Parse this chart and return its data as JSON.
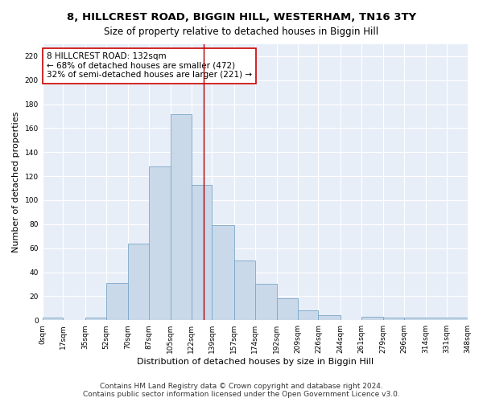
{
  "title": "8, HILLCREST ROAD, BIGGIN HILL, WESTERHAM, TN16 3TY",
  "subtitle": "Size of property relative to detached houses in Biggin Hill",
  "xlabel": "Distribution of detached houses by size in Biggin Hill",
  "ylabel": "Number of detached properties",
  "bar_values": [
    2,
    0,
    2,
    31,
    64,
    128,
    172,
    113,
    79,
    50,
    30,
    18,
    8,
    4,
    0,
    3,
    2,
    2
  ],
  "bin_edges": [
    0,
    17,
    35,
    52,
    70,
    87,
    105,
    122,
    139,
    157,
    174,
    192,
    209,
    226,
    244,
    261,
    279,
    296,
    348
  ],
  "tick_labels": [
    "0sqm",
    "17sqm",
    "35sqm",
    "52sqm",
    "70sqm",
    "87sqm",
    "105sqm",
    "122sqm",
    "139sqm",
    "157sqm",
    "174sqm",
    "192sqm",
    "209sqm",
    "226sqm",
    "244sqm",
    "261sqm",
    "279sqm",
    "296sqm",
    "314sqm",
    "331sqm",
    "348sqm"
  ],
  "bar_color": "#c9d9ea",
  "bar_edgecolor": "#7ba7c7",
  "vline_x": 132,
  "vline_color": "#aa0000",
  "annotation_text": "8 HILLCREST ROAD: 132sqm\n← 68% of detached houses are smaller (472)\n32% of semi-detached houses are larger (221) →",
  "annotation_box_color": "#ffffff",
  "annotation_box_edgecolor": "#cc0000",
  "ylim": [
    0,
    230
  ],
  "yticks": [
    0,
    20,
    40,
    60,
    80,
    100,
    120,
    140,
    160,
    180,
    200,
    220
  ],
  "bg_color": "#e8eef8",
  "grid_color": "#ffffff",
  "footer_line1": "Contains HM Land Registry data © Crown copyright and database right 2024.",
  "footer_line2": "Contains public sector information licensed under the Open Government Licence v3.0.",
  "title_fontsize": 9.5,
  "subtitle_fontsize": 8.5,
  "ylabel_fontsize": 8,
  "xlabel_fontsize": 8,
  "tick_fontsize": 6.5,
  "annotation_fontsize": 7.5,
  "footer_fontsize": 6.5
}
